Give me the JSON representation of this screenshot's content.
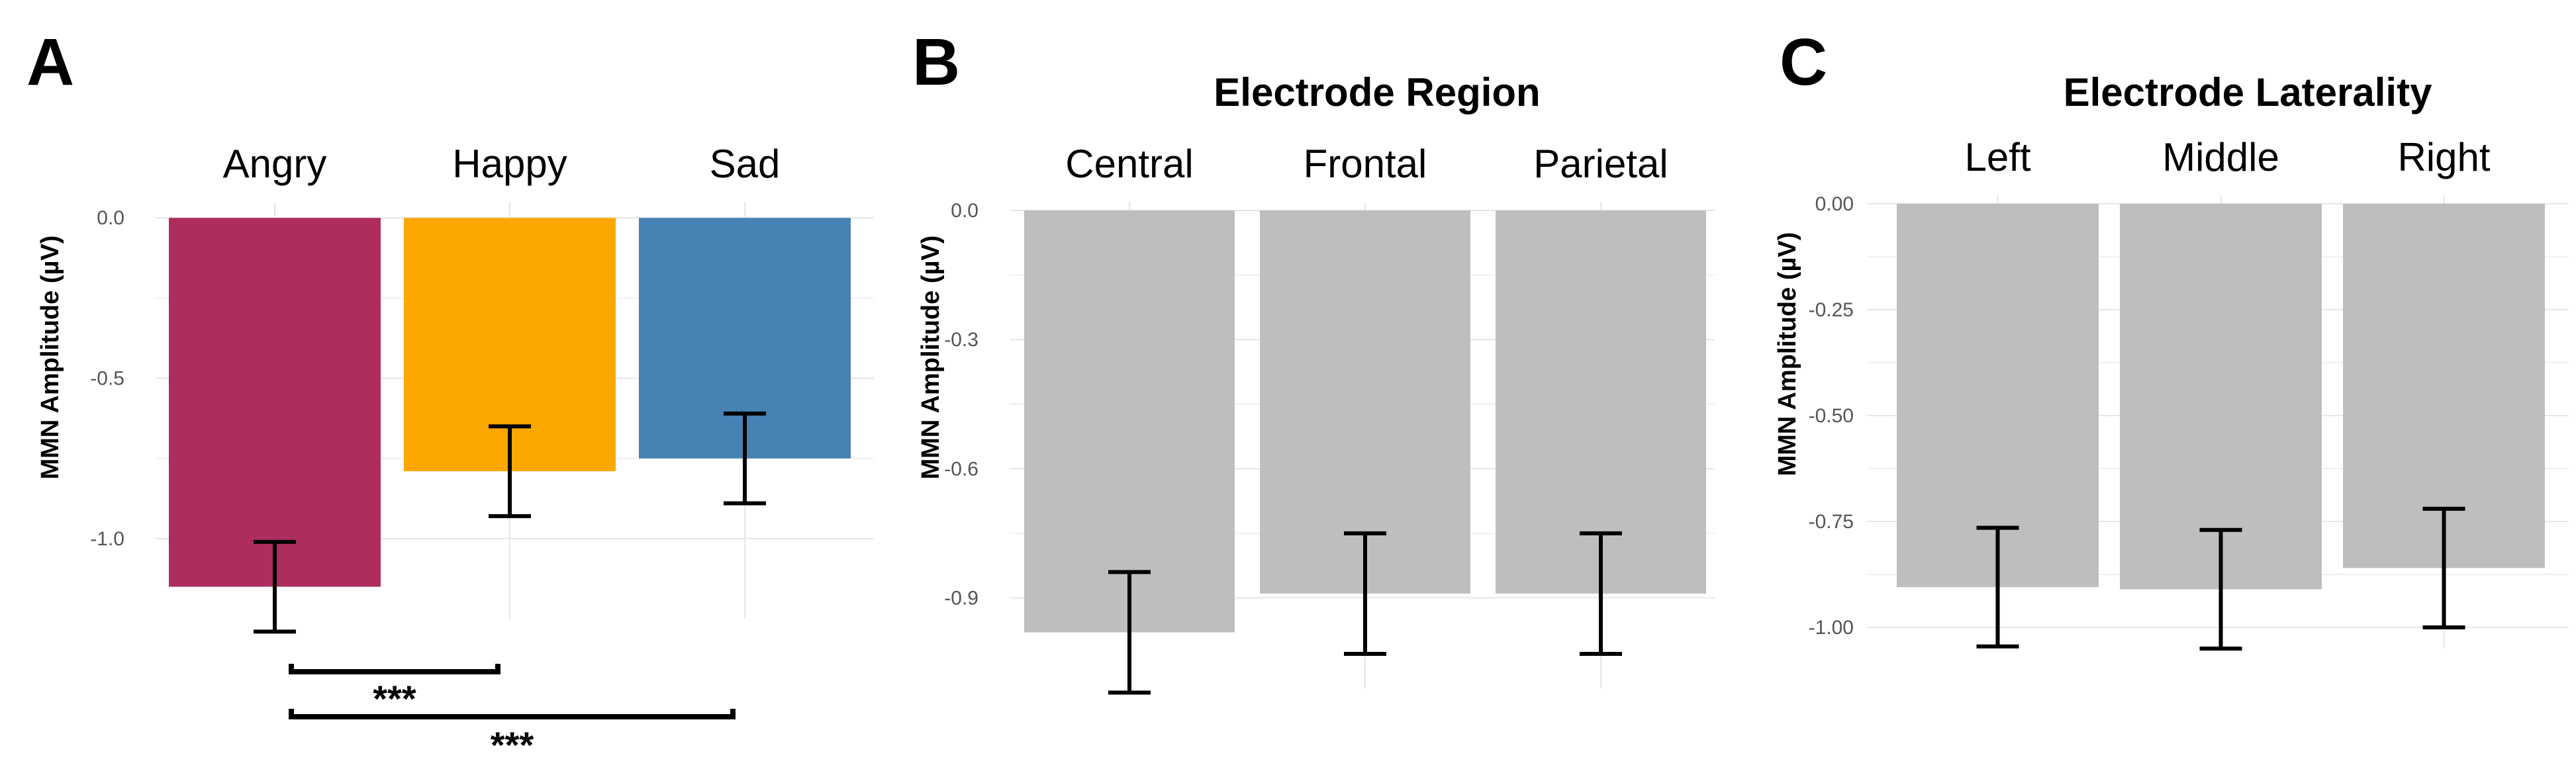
{
  "chart_data": [
    {
      "panel": "A",
      "type": "bar",
      "title": "",
      "ylabel": "MMN Amplitude (µV)",
      "categories": [
        "Angry",
        "Happy",
        "Sad"
      ],
      "values": [
        -1.15,
        -0.79,
        -0.75
      ],
      "errors": [
        0.14,
        0.14,
        0.14
      ],
      "colors": [
        "#ad2d5f",
        "#fca700",
        "#4682b4"
      ],
      "yticks": [
        "0.0",
        "-0.5",
        "-1.0"
      ],
      "ylim": [
        -1.25,
        0.05
      ],
      "grid": true,
      "significance": [
        {
          "from": "Angry",
          "to": "Happy",
          "label": "***"
        },
        {
          "from": "Angry",
          "to": "Sad",
          "label": "***"
        }
      ]
    },
    {
      "panel": "B",
      "type": "bar",
      "title": "Electrode Region",
      "ylabel": "MMN Amplitude (µV)",
      "categories": [
        "Central",
        "Frontal",
        "Parietal"
      ],
      "values": [
        -0.98,
        -0.89,
        -0.89
      ],
      "errors": [
        0.14,
        0.14,
        0.14
      ],
      "colors": [
        "#bebebe",
        "#bebebe",
        "#bebebe"
      ],
      "yticks": [
        "0.0",
        "-0.3",
        "-0.6",
        "-0.9"
      ],
      "ylim": [
        -1.11,
        0.02
      ],
      "grid": true
    },
    {
      "panel": "C",
      "type": "bar",
      "title": "Electrode Laterality",
      "ylabel": "MMN Amplitude (µV)",
      "categories": [
        "Left",
        "Middle",
        "Right"
      ],
      "values": [
        -0.905,
        -0.91,
        -0.86
      ],
      "errors": [
        0.14,
        0.14,
        0.14
      ],
      "colors": [
        "#bebebe",
        "#bebebe",
        "#bebebe"
      ],
      "yticks": [
        "0.00",
        "-0.25",
        "-0.50",
        "-0.75",
        "-1.00"
      ],
      "ylim": [
        -1.05,
        0.02
      ],
      "grid": true
    }
  ]
}
